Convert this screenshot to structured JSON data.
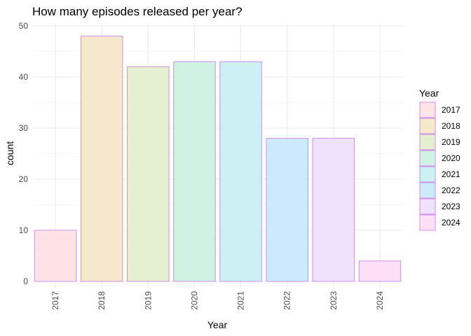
{
  "chart_data": {
    "type": "bar",
    "title": "How many episodes released per year?",
    "xlabel": "Year",
    "ylabel": "count",
    "categories": [
      "2017",
      "2018",
      "2019",
      "2020",
      "2021",
      "2022",
      "2023",
      "2024"
    ],
    "values": [
      10,
      48,
      42,
      43,
      43,
      28,
      28,
      4
    ],
    "ylim": [
      0,
      50
    ],
    "yticks": [
      0,
      10,
      20,
      30,
      40,
      50
    ],
    "grid": true,
    "legend": {
      "title": "Year",
      "position": "right",
      "entries": [
        "2017",
        "2018",
        "2019",
        "2020",
        "2021",
        "2022",
        "2023",
        "2024"
      ]
    },
    "colors": {
      "fills": [
        "#ffe3e7",
        "#f6e8cc",
        "#e3efd0",
        "#cff2e3",
        "#cdf1f3",
        "#cbebfb",
        "#eee2fb",
        "#fde0f5"
      ],
      "stroke": "#d08cf0",
      "grid": "#ebebeb"
    }
  }
}
